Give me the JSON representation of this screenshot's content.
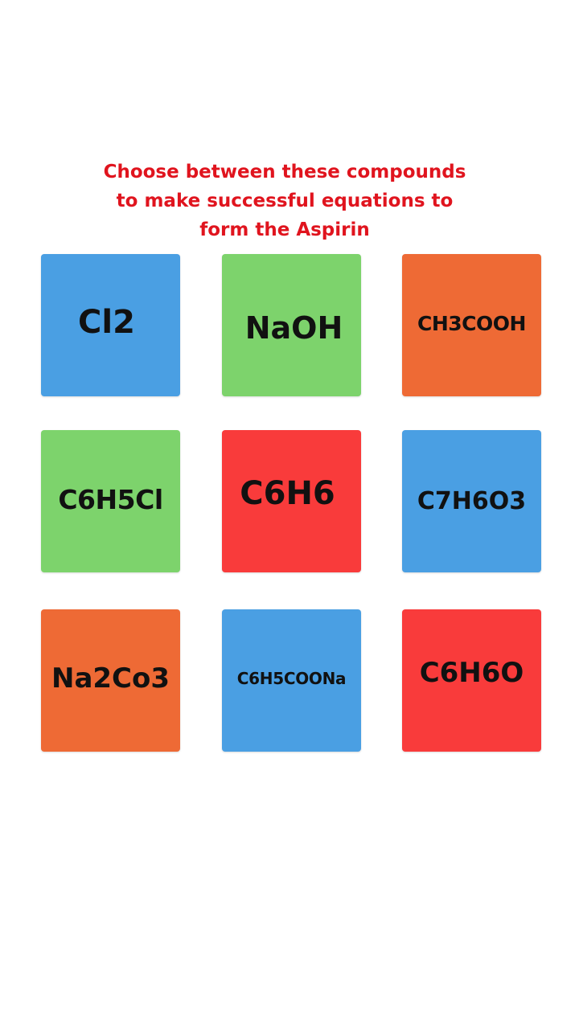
{
  "instructions": {
    "line1": "Choose between these compounds",
    "line2": "to make successful equations to",
    "line3": "form the Aspirin",
    "color": "#e0141e"
  },
  "colors": {
    "blue": "#4a9fe3",
    "green": "#7dd36c",
    "orange": "#ee6a35",
    "red": "#f93b3b"
  },
  "tiles": [
    {
      "label": "Cl2",
      "color": "blue"
    },
    {
      "label": "NaOH",
      "color": "green"
    },
    {
      "label": "CH3COOH",
      "color": "orange"
    },
    {
      "label": "C6H5Cl",
      "color": "green"
    },
    {
      "label": "C6H6",
      "color": "red"
    },
    {
      "label": "C7H6O3",
      "color": "blue"
    },
    {
      "label": "Na2Co3",
      "color": "orange"
    },
    {
      "label": "C6H5COONa",
      "color": "blue"
    },
    {
      "label": "C6H6O",
      "color": "red"
    }
  ]
}
